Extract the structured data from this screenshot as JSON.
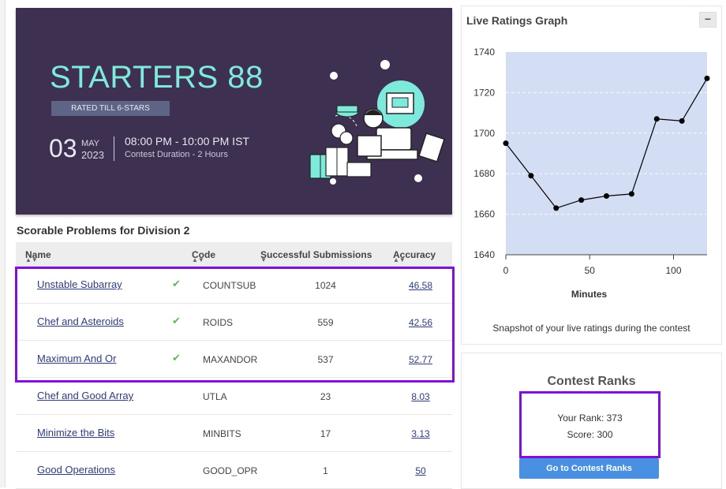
{
  "banner": {
    "title": "STARTERS 88",
    "rated": "RATED TILL 6-STARS",
    "day": "03",
    "month": "MAY",
    "year": "2023",
    "time": "08:00 PM - 10:00 PM IST",
    "duration": "Contest Duration - 2 Hours"
  },
  "problems": {
    "title": "Scorable Problems for Division 2",
    "headers": {
      "name": "Name",
      "code": "Code",
      "subs": "Successful Submissions",
      "accuracy": "Accuracy"
    },
    "rows": [
      {
        "name": "Unstable Subarray",
        "solved": true,
        "code": "COUNTSUB",
        "subs": "1024",
        "accuracy": "46.58"
      },
      {
        "name": "Chef and Asteroids",
        "solved": true,
        "code": "ROIDS",
        "subs": "559",
        "accuracy": "42.56"
      },
      {
        "name": "Maximum And Or",
        "solved": true,
        "code": "MAXANDOR",
        "subs": "537",
        "accuracy": "52.77"
      },
      {
        "name": "Chef and Good Array",
        "solved": false,
        "code": "UTLA",
        "subs": "23",
        "accuracy": "8.03"
      },
      {
        "name": "Minimize the Bits",
        "solved": false,
        "code": "MINBITS",
        "subs": "17",
        "accuracy": "3.13"
      },
      {
        "name": "Good Operations",
        "solved": false,
        "code": "GOOD_OPR",
        "subs": "1",
        "accuracy": "50"
      }
    ]
  },
  "graph": {
    "title": "Live Ratings Graph",
    "collapse_symbol": "−",
    "caption": "Snapshot of your live ratings during the contest"
  },
  "chart_data": {
    "type": "line",
    "title": "",
    "xlabel": "Minutes",
    "ylabel": "",
    "x": [
      0,
      15,
      30,
      45,
      60,
      75,
      90,
      105,
      120
    ],
    "values": [
      1695,
      1679,
      1663,
      1667,
      1669,
      1670,
      1707,
      1706,
      1727
    ],
    "xlim": [
      0,
      120
    ],
    "ylim": [
      1640,
      1740
    ],
    "xticks": [
      "0",
      "50",
      "100"
    ],
    "yticks": [
      "1640",
      "1660",
      "1680",
      "1700",
      "1720",
      "1740"
    ],
    "plot_color": "#d3def5",
    "line_color": "#000000",
    "grid": true
  },
  "ranks": {
    "title": "Contest Ranks",
    "rank_text": "Your Rank: 373",
    "score_text": "Score: 300",
    "button": "Go to Contest Ranks"
  },
  "colors": {
    "highlight": "#8010d8",
    "link": "#2e3c7e",
    "check": "#5cb85c",
    "button": "#4a90e2",
    "banner_bg": "#3d3050",
    "banner_title": "#7eeadb"
  }
}
